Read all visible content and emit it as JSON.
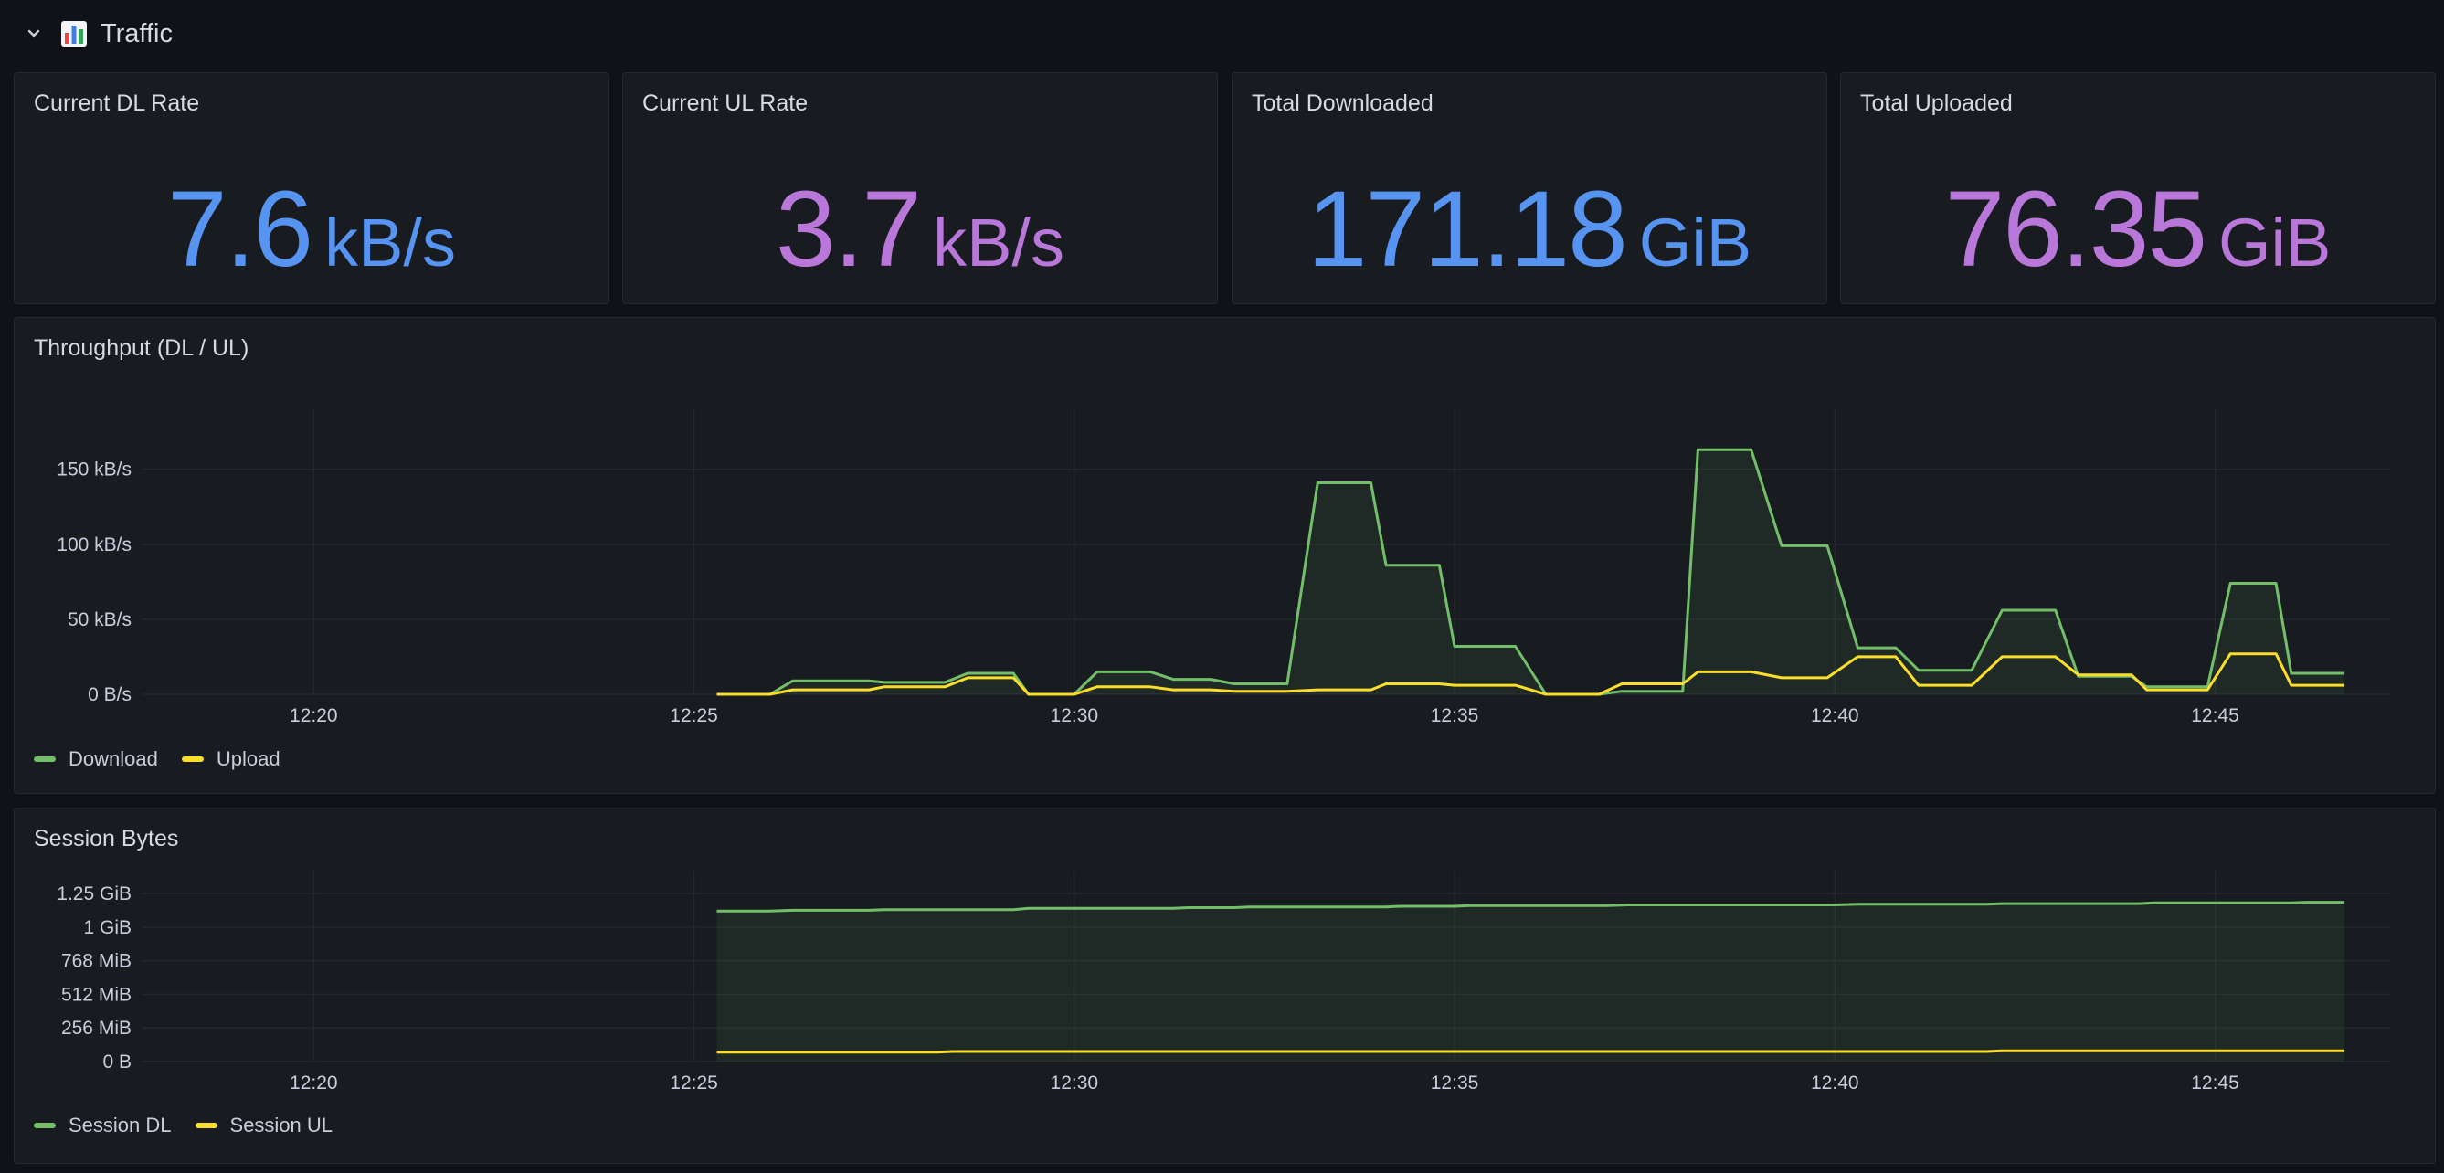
{
  "row": {
    "title": "Traffic",
    "collapse_icon": "chevron-down-icon",
    "icon": "bar-chart-icon"
  },
  "stats": [
    {
      "title": "Current DL Rate",
      "value": "7.6",
      "unit": "kB/s",
      "color": "#5794f2"
    },
    {
      "title": "Current UL Rate",
      "value": "3.7",
      "unit": "kB/s",
      "color": "#b877d9"
    },
    {
      "title": "Total Downloaded",
      "value": "171.18",
      "unit": "GiB",
      "color": "#5794f2"
    },
    {
      "title": "Total Uploaded",
      "value": "76.35",
      "unit": "GiB",
      "color": "#b877d9"
    }
  ],
  "throughput": {
    "title": "Throughput (DL / UL)",
    "legend": [
      {
        "name": "Download",
        "color": "#73bf69"
      },
      {
        "name": "Upload",
        "color": "#fade2a"
      }
    ]
  },
  "session": {
    "title": "Session Bytes",
    "legend": [
      {
        "name": "Session DL",
        "color": "#73bf69"
      },
      {
        "name": "Session UL",
        "color": "#fade2a"
      }
    ]
  },
  "chart_data": [
    {
      "type": "line",
      "title": "Throughput (DL / UL)",
      "x_unit": "minutes",
      "xlim": [
        17.75,
        47.3
      ],
      "x_ticks": [
        20,
        25,
        30,
        35,
        40,
        45
      ],
      "x_tick_labels": [
        "12:20",
        "12:25",
        "12:30",
        "12:35",
        "12:40",
        "12:45"
      ],
      "ylim": [
        0,
        190
      ],
      "y_ticks": [
        0,
        50,
        100,
        150
      ],
      "y_tick_labels": [
        "0 B/s",
        "50 kB/s",
        "100 kB/s",
        "150 kB/s"
      ],
      "series": [
        {
          "name": "Download",
          "color": "#73bf69",
          "fill": true,
          "points": [
            [
              25.3,
              0
            ],
            [
              26.0,
              0
            ],
            [
              26.3,
              9
            ],
            [
              27.3,
              9
            ],
            [
              27.5,
              8
            ],
            [
              28.3,
              8
            ],
            [
              28.6,
              14
            ],
            [
              29.2,
              14
            ],
            [
              29.4,
              0
            ],
            [
              30.0,
              0
            ],
            [
              30.3,
              15
            ],
            [
              31.0,
              15
            ],
            [
              31.3,
              10
            ],
            [
              31.8,
              10
            ],
            [
              32.1,
              7
            ],
            [
              32.8,
              7
            ],
            [
              33.2,
              141
            ],
            [
              33.9,
              141
            ],
            [
              34.1,
              86
            ],
            [
              34.8,
              86
            ],
            [
              35.0,
              32
            ],
            [
              35.8,
              32
            ],
            [
              36.2,
              0
            ],
            [
              36.9,
              0
            ],
            [
              37.2,
              2
            ],
            [
              38.0,
              2
            ],
            [
              38.2,
              163
            ],
            [
              38.9,
              163
            ],
            [
              39.3,
              99
            ],
            [
              39.9,
              99
            ],
            [
              40.3,
              31
            ],
            [
              40.8,
              31
            ],
            [
              41.1,
              16
            ],
            [
              41.8,
              16
            ],
            [
              42.2,
              56
            ],
            [
              42.9,
              56
            ],
            [
              43.2,
              12
            ],
            [
              43.9,
              12
            ],
            [
              44.1,
              5
            ],
            [
              44.9,
              5
            ],
            [
              45.2,
              74
            ],
            [
              45.8,
              74
            ],
            [
              46.0,
              14
            ],
            [
              46.7,
              14
            ]
          ]
        },
        {
          "name": "Upload",
          "color": "#fade2a",
          "fill": false,
          "points": [
            [
              25.3,
              0
            ],
            [
              26.0,
              0
            ],
            [
              26.3,
              3
            ],
            [
              27.3,
              3
            ],
            [
              27.5,
              5
            ],
            [
              28.3,
              5
            ],
            [
              28.6,
              11
            ],
            [
              29.2,
              11
            ],
            [
              29.4,
              0
            ],
            [
              30.0,
              0
            ],
            [
              30.3,
              5
            ],
            [
              31.0,
              5
            ],
            [
              31.3,
              3
            ],
            [
              31.8,
              3
            ],
            [
              32.1,
              2
            ],
            [
              32.8,
              2
            ],
            [
              33.2,
              3
            ],
            [
              33.9,
              3
            ],
            [
              34.1,
              7
            ],
            [
              34.8,
              7
            ],
            [
              35.0,
              6
            ],
            [
              35.8,
              6
            ],
            [
              36.2,
              0
            ],
            [
              36.9,
              0
            ],
            [
              37.2,
              7
            ],
            [
              38.0,
              7
            ],
            [
              38.2,
              15
            ],
            [
              38.9,
              15
            ],
            [
              39.3,
              11
            ],
            [
              39.9,
              11
            ],
            [
              40.3,
              25
            ],
            [
              40.8,
              25
            ],
            [
              41.1,
              6
            ],
            [
              41.8,
              6
            ],
            [
              42.2,
              25
            ],
            [
              42.9,
              25
            ],
            [
              43.2,
              13
            ],
            [
              43.9,
              13
            ],
            [
              44.1,
              3
            ],
            [
              44.9,
              3
            ],
            [
              45.2,
              27
            ],
            [
              45.8,
              27
            ],
            [
              46.0,
              6
            ],
            [
              46.7,
              6
            ]
          ]
        }
      ]
    },
    {
      "type": "line",
      "title": "Session Bytes",
      "x_unit": "minutes",
      "xlim": [
        17.75,
        47.3
      ],
      "x_ticks": [
        20,
        25,
        30,
        35,
        40,
        45
      ],
      "x_tick_labels": [
        "12:20",
        "12:25",
        "12:30",
        "12:35",
        "12:40",
        "12:45"
      ],
      "ylim": [
        0,
        1.42
      ],
      "y_ticks": [
        0,
        0.25,
        0.5,
        0.75,
        1.0,
        1.25
      ],
      "y_tick_labels": [
        "0 B",
        "256 MiB",
        "512 MiB",
        "768 MiB",
        "1 GiB",
        "1.25 GiB"
      ],
      "y_unit": "GiB",
      "series": [
        {
          "name": "Session DL",
          "color": "#73bf69",
          "fill": true,
          "points": [
            [
              25.3,
              1.12
            ],
            [
              26.0,
              1.12
            ],
            [
              26.3,
              1.125
            ],
            [
              27.3,
              1.125
            ],
            [
              27.5,
              1.13
            ],
            [
              29.2,
              1.13
            ],
            [
              29.4,
              1.14
            ],
            [
              31.3,
              1.14
            ],
            [
              31.5,
              1.145
            ],
            [
              32.1,
              1.145
            ],
            [
              32.3,
              1.15
            ],
            [
              34.1,
              1.15
            ],
            [
              34.3,
              1.155
            ],
            [
              35.0,
              1.155
            ],
            [
              35.2,
              1.16
            ],
            [
              37.0,
              1.16
            ],
            [
              37.3,
              1.165
            ],
            [
              40.0,
              1.165
            ],
            [
              40.3,
              1.17
            ],
            [
              42.0,
              1.17
            ],
            [
              42.2,
              1.175
            ],
            [
              44.0,
              1.175
            ],
            [
              44.2,
              1.18
            ],
            [
              46.0,
              1.18
            ],
            [
              46.2,
              1.185
            ],
            [
              46.7,
              1.185
            ]
          ]
        },
        {
          "name": "Session UL",
          "color": "#fade2a",
          "fill": false,
          "points": [
            [
              25.3,
              0.07
            ],
            [
              28.2,
              0.07
            ],
            [
              28.4,
              0.075
            ],
            [
              42.0,
              0.075
            ],
            [
              42.2,
              0.08
            ],
            [
              46.7,
              0.08
            ]
          ]
        }
      ]
    }
  ]
}
